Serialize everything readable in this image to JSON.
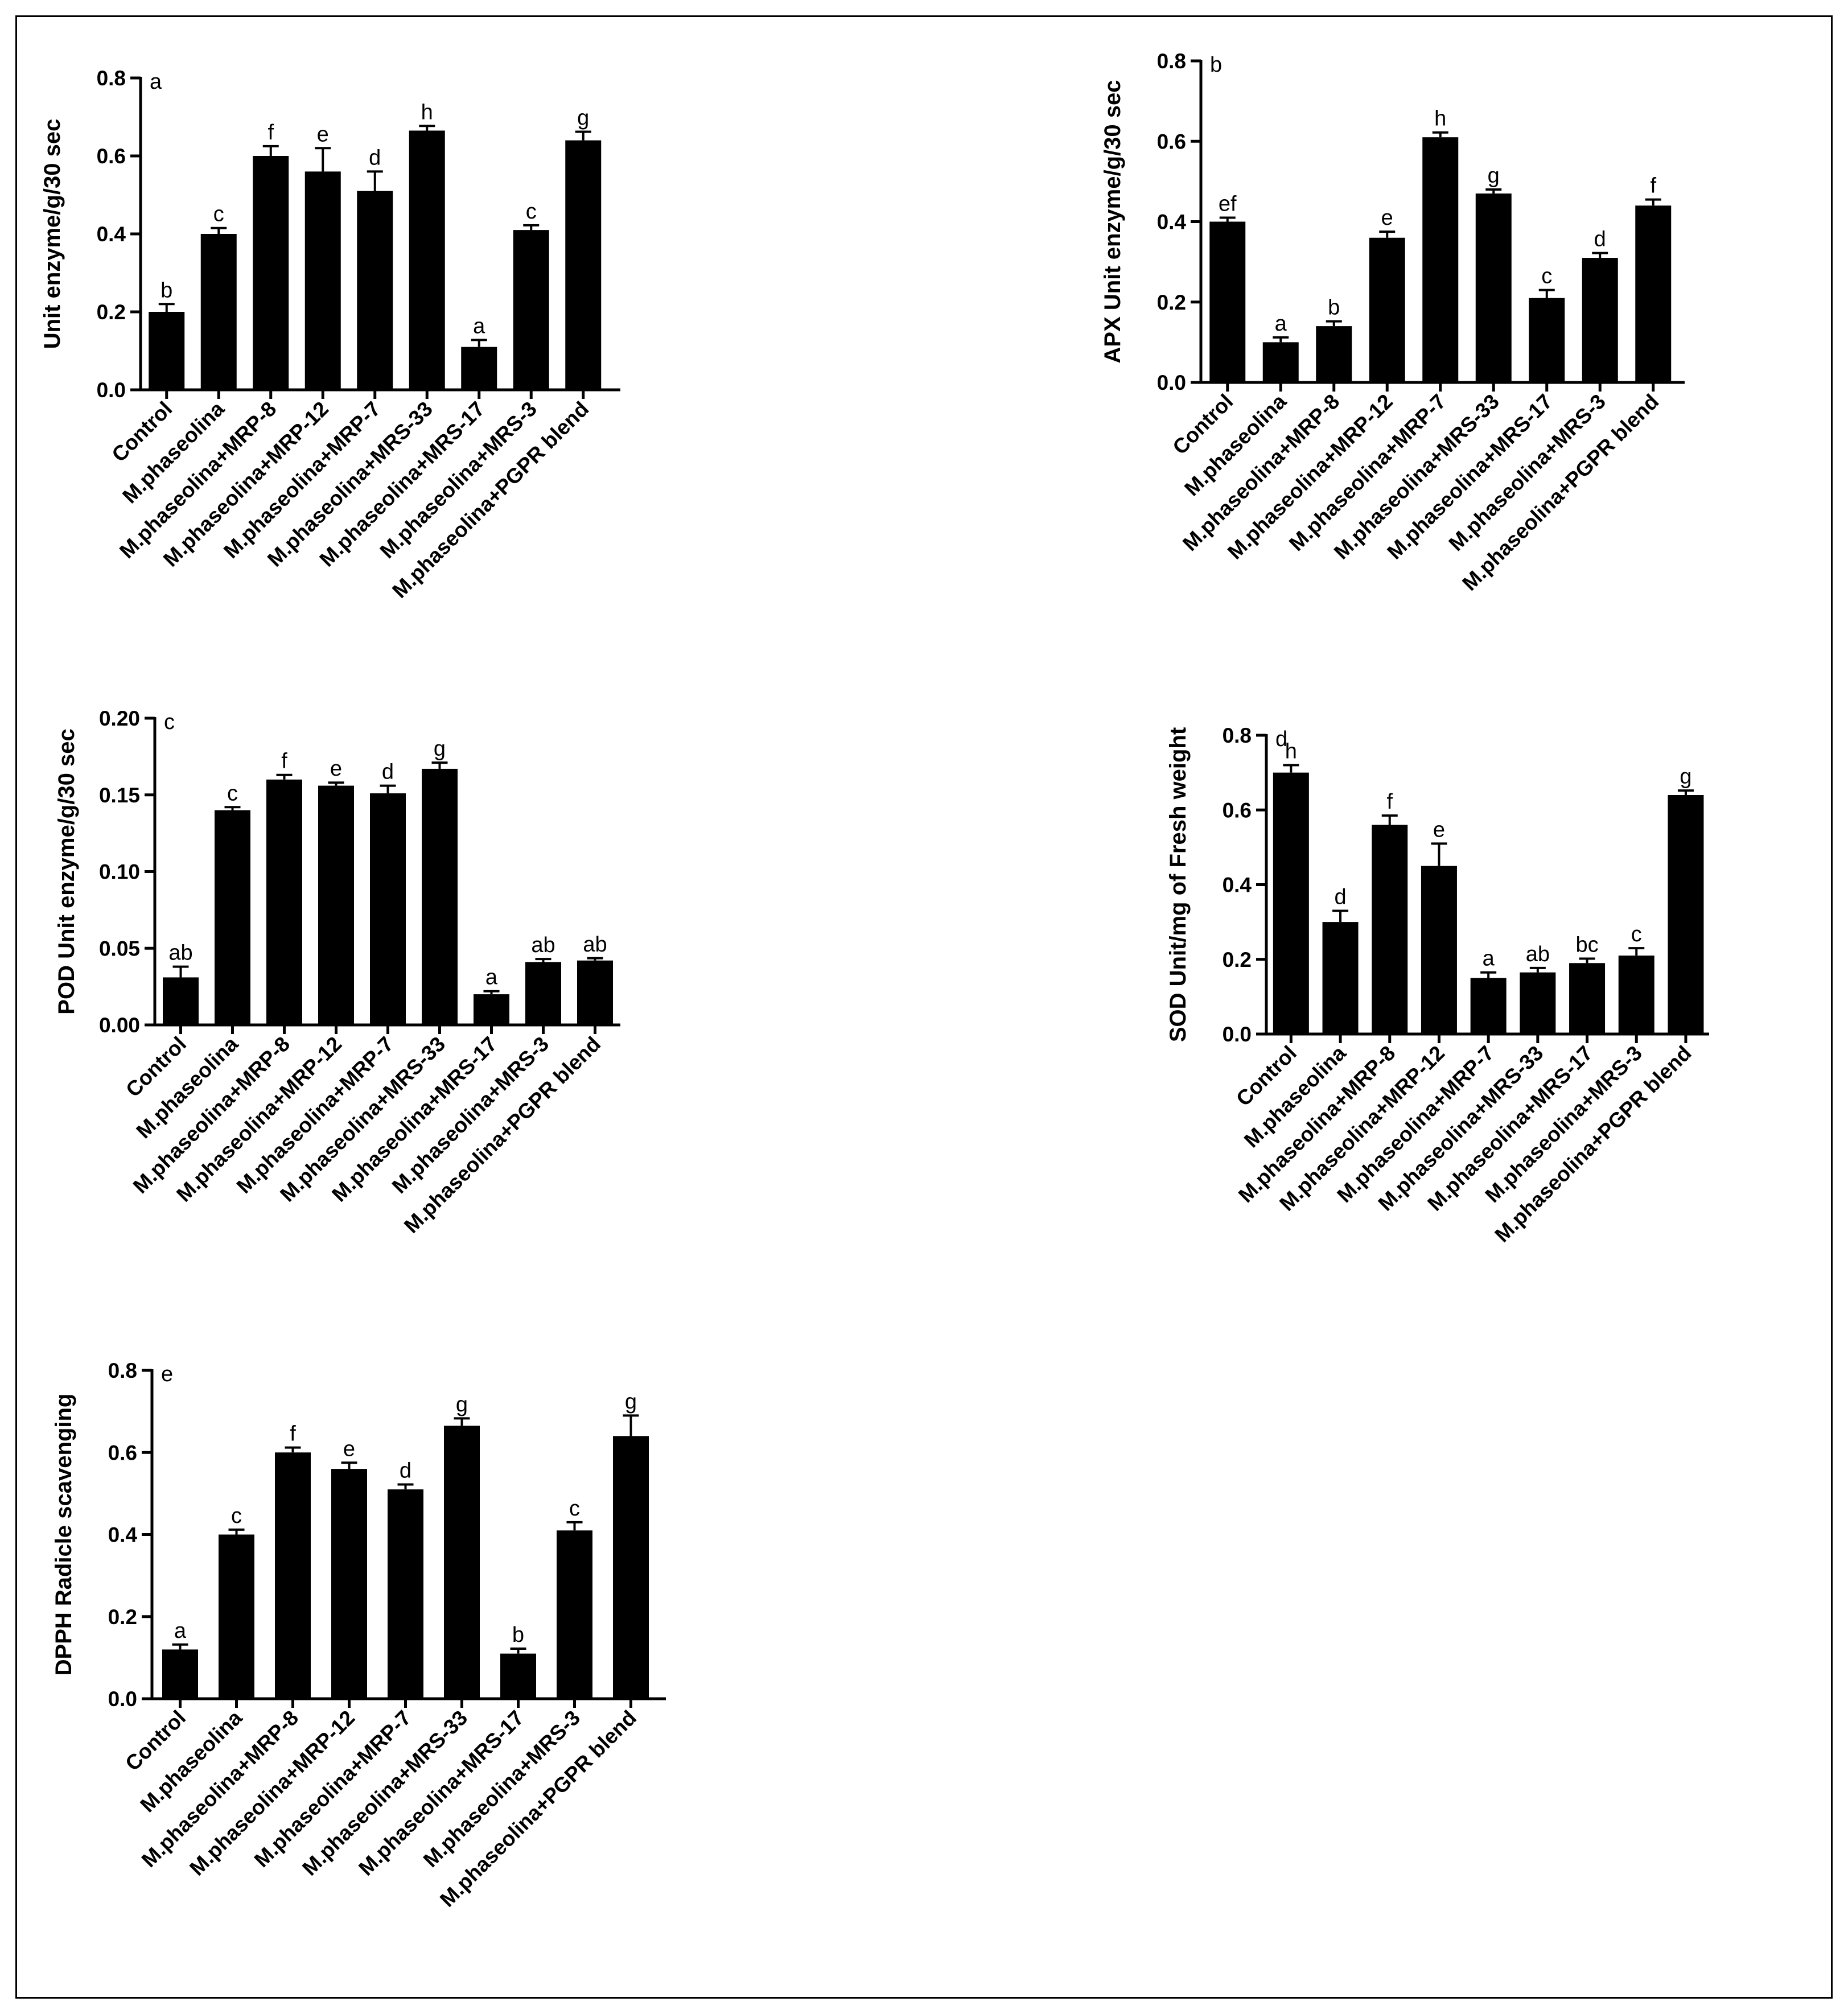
{
  "chart_data": [
    {
      "panel_letter": "a",
      "type": "bar",
      "categories": [
        "Control",
        "M.phaseolina",
        "M.phaseolina+MRP-8",
        "M.phaseolina+MRP-12",
        "M.phaseolina+MRP-7",
        "M.phaseolina+MRS-33",
        "M.phaseolina+MRS-17",
        "M.phaseolina+MRS-3",
        "M.phaseolina+PGPR blend"
      ],
      "values": [
        0.2,
        0.4,
        0.6,
        0.56,
        0.51,
        0.665,
        0.11,
        0.41,
        0.64
      ],
      "errors": [
        0.02,
        0.015,
        0.025,
        0.06,
        0.05,
        0.012,
        0.018,
        0.012,
        0.022
      ],
      "letters": [
        "b",
        "c",
        "f",
        "e",
        "d",
        "h",
        "a",
        "c",
        "g"
      ],
      "ylabel": "Unit enzyme/g/30 sec",
      "xlabel": "",
      "ylim": [
        0,
        0.8
      ],
      "yticks": [
        "0.0",
        "0.2",
        "0.4",
        "0.6",
        "0.8"
      ],
      "grid": false,
      "bar_color": "#000000"
    },
    {
      "panel_letter": "b",
      "type": "bar",
      "categories": [
        "Control",
        "M.phaseolina",
        "M.phaseolina+MRP-8",
        "M.phaseolina+MRP-12",
        "M.phaseolina+MRP-7",
        "M.phaseolina+MRS-33",
        "M.phaseolina+MRS-17",
        "M.phaseolina+MRS-3",
        "M.phaseolina+PGPR blend"
      ],
      "values": [
        0.4,
        0.1,
        0.14,
        0.36,
        0.61,
        0.47,
        0.21,
        0.31,
        0.44
      ],
      "errors": [
        0.01,
        0.012,
        0.012,
        0.015,
        0.012,
        0.01,
        0.02,
        0.012,
        0.015
      ],
      "letters": [
        "ef",
        "a",
        "b",
        "e",
        "h",
        "g",
        "c",
        "d",
        "f"
      ],
      "ylabel": "APX Unit enzyme/g/30 sec",
      "xlabel": "",
      "ylim": [
        0,
        0.8
      ],
      "yticks": [
        "0.0",
        "0.2",
        "0.4",
        "0.6",
        "0.8"
      ],
      "grid": false,
      "bar_color": "#000000"
    },
    {
      "panel_letter": "c",
      "type": "bar",
      "categories": [
        "Control",
        "M.phaseolina",
        "M.phaseolina+MRP-8",
        "M.phaseolina+MRP-12",
        "M.phaseolina+MRP-7",
        "M.phaseolina+MRS-33",
        "M.phaseolina+MRS-17",
        "M.phaseolina+MRS-3",
        "M.phaseolina+PGPR blend"
      ],
      "values": [
        0.031,
        0.14,
        0.16,
        0.156,
        0.151,
        0.167,
        0.02,
        0.041,
        0.042
      ],
      "errors": [
        0.007,
        0.002,
        0.003,
        0.002,
        0.005,
        0.004,
        0.002,
        0.002,
        0.0015
      ],
      "letters": [
        "ab",
        "c",
        "f",
        "e",
        "d",
        "g",
        "a",
        "ab",
        "ab"
      ],
      "ylabel": "POD Unit enzyme/g/30 sec",
      "xlabel": "",
      "ylim": [
        0,
        0.2
      ],
      "yticks": [
        "0.00",
        "0.05",
        "0.10",
        "0.15",
        "0.20"
      ],
      "grid": false,
      "bar_color": "#000000"
    },
    {
      "panel_letter": "d",
      "type": "bar",
      "categories": [
        "Control",
        "M.phaseolina",
        "M.phaseolina+MRP-8",
        "M.phaseolina+MRP-12",
        "M.phaseolina+MRP-7",
        "M.phaseolina+MRS-33",
        "M.phaseolina+MRS-17",
        "M.phaseolina+MRS-3",
        "M.phaseolina+PGPR blend"
      ],
      "values": [
        0.7,
        0.3,
        0.56,
        0.45,
        0.15,
        0.165,
        0.19,
        0.21,
        0.64
      ],
      "errors": [
        0.02,
        0.03,
        0.025,
        0.06,
        0.015,
        0.012,
        0.012,
        0.02,
        0.012
      ],
      "letters": [
        "h",
        "d",
        "f",
        "e",
        "a",
        "ab",
        "bc",
        "c",
        "g"
      ],
      "ylabel": "SOD Unit/mg of Fresh weight",
      "xlabel": "",
      "ylim": [
        0,
        0.8
      ],
      "yticks": [
        "0.0",
        "0.2",
        "0.4",
        "0.6",
        "0.8"
      ],
      "grid": false,
      "bar_color": "#000000"
    },
    {
      "panel_letter": "e",
      "type": "bar",
      "categories": [
        "Control",
        "M.phaseolina",
        "M.phaseolina+MRP-8",
        "M.phaseolina+MRP-12",
        "M.phaseolina+MRP-7",
        "M.phaseolina+MRS-33",
        "M.phaseolina+MRS-17",
        "M.phaseolina+MRS-3",
        "M.phaseolina+PGPR blend"
      ],
      "values": [
        0.12,
        0.4,
        0.6,
        0.56,
        0.51,
        0.665,
        0.11,
        0.41,
        0.64
      ],
      "errors": [
        0.012,
        0.012,
        0.012,
        0.015,
        0.012,
        0.018,
        0.012,
        0.02,
        0.05
      ],
      "letters": [
        "a",
        "c",
        "f",
        "e",
        "d",
        "g",
        "b",
        "c",
        "g"
      ],
      "ylabel": "DPPH Radicle scavenging",
      "xlabel": "",
      "ylim": [
        0,
        0.8
      ],
      "yticks": [
        "0.0",
        "0.2",
        "0.4",
        "0.6",
        "0.8"
      ],
      "grid": false,
      "bar_color": "#000000"
    }
  ]
}
